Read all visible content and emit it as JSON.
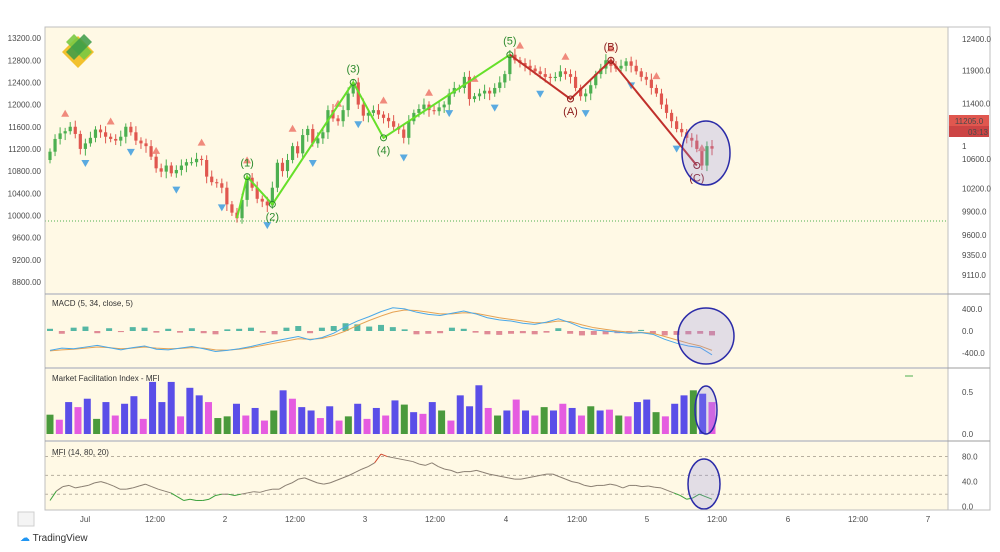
{
  "brand": "TradingView",
  "colors": {
    "background": "#fff9e5",
    "bull": "#4caf50",
    "bear": "#e0574f",
    "wave_up": "#66e02a",
    "wave_down": "#c0302b",
    "fractal_up": "#f08a7c",
    "fractal_down": "#5aaae0",
    "macd": "#4aa8e8",
    "signal": "#e6a253",
    "mfi_line": "#8a7f72",
    "highlight": "#2b2ba8"
  },
  "chart_data": [
    {
      "type": "candlestick",
      "left_axis": {
        "ticks": [
          "13200.00",
          "12800.00",
          "12400.00",
          "12000.00",
          "11600.00",
          "11200.00",
          "10800.00",
          "10400.00",
          "10000.00",
          "9600.00",
          "9200.00",
          "8800.00"
        ],
        "ylim": [
          8600,
          13400
        ]
      },
      "right_axis": {
        "ticks": [
          "12400.0",
          "11900.0",
          "11400.0",
          "10600.0",
          "10200.0",
          "9900.0",
          "9600.0",
          "9350.0",
          "9110.0"
        ],
        "scale": "log"
      },
      "last_price": "11205.0",
      "countdown": "03:13",
      "right_extra_tick": "1",
      "x_ticks": [
        "Jul",
        "12:00",
        "2",
        "12:00",
        "3",
        "12:00",
        "4",
        "12:00",
        "5",
        "12:00",
        "6",
        "12:00",
        "7"
      ],
      "dotted_level": 9900,
      "closes": [
        11150,
        11380,
        11480,
        11520,
        11600,
        11470,
        11200,
        11300,
        11400,
        11550,
        11500,
        11420,
        11380,
        11350,
        11420,
        11600,
        11500,
        11350,
        11300,
        11250,
        11060,
        10850,
        10790,
        10900,
        10760,
        10820,
        10900,
        10960,
        10960,
        11020,
        11000,
        10700,
        10600,
        10580,
        10500,
        10200,
        10050,
        9950,
        10280,
        10680,
        10500,
        10300,
        10250,
        10180,
        10500,
        10950,
        10800,
        11000,
        11250,
        11120,
        11450,
        11560,
        11300,
        11390,
        11500,
        11900,
        11750,
        11700,
        11900,
        12200,
        12400,
        12000,
        11800,
        11850,
        11900,
        11820,
        11760,
        11700,
        11600,
        11550,
        11400,
        11700,
        11850,
        11920,
        12000,
        11900,
        11880,
        11950,
        12000,
        12200,
        12300,
        12300,
        12500,
        12100,
        12150,
        12200,
        12250,
        12200,
        12300,
        12400,
        12550,
        12900,
        12800,
        12750,
        12700,
        12650,
        12600,
        12550,
        12500,
        12480,
        12500,
        12600,
        12550,
        12500,
        12300,
        12150,
        12200,
        12350,
        12550,
        12650,
        12800,
        12700,
        12650,
        12700,
        12780,
        12700,
        12600,
        12500,
        12450,
        12300,
        12200,
        12000,
        11850,
        11700,
        11560,
        11500,
        11400,
        11350,
        11200,
        10900,
        11250,
        11205
      ],
      "waves": [
        {
          "label": "(1)",
          "dir": "up",
          "price": 10700
        },
        {
          "label": "(2)",
          "dir": "up",
          "price": 10200
        },
        {
          "label": "(3)",
          "dir": "up",
          "price": 12400
        },
        {
          "label": "(4)",
          "dir": "up",
          "price": 11400
        },
        {
          "label": "(5)",
          "dir": "up",
          "price": 12900
        },
        {
          "label": "(A)",
          "dir": "down",
          "price": 12100
        },
        {
          "label": "(B)",
          "dir": "down",
          "price": 12800
        },
        {
          "label": "(C)",
          "dir": "down",
          "price": 10900
        }
      ]
    },
    {
      "type": "line",
      "title": "MACD (5, 34, close, 5)",
      "axis_ticks": [
        "400.0",
        "0.0",
        "-400.0"
      ],
      "ylim": [
        -650,
        650
      ],
      "macd": [
        -350,
        -310,
        -320,
        -290,
        -260,
        -300,
        -340,
        -300,
        -270,
        -330,
        -340,
        -310,
        -280,
        -320,
        -370,
        -350,
        -320,
        -280,
        -230,
        -180,
        -140,
        -100,
        -160,
        -120,
        -40,
        80,
        180,
        260,
        350,
        420,
        400,
        340,
        300,
        280,
        320,
        360,
        310,
        240,
        200,
        180,
        140,
        120,
        160,
        220,
        150,
        60,
        20,
        0,
        -20,
        -40,
        -30,
        -60,
        -150,
        -220,
        -270,
        -300,
        -430
      ],
      "signal": [
        -360,
        -340,
        -330,
        -310,
        -290,
        -300,
        -320,
        -310,
        -290,
        -310,
        -320,
        -315,
        -300,
        -310,
        -340,
        -345,
        -330,
        -300,
        -260,
        -220,
        -180,
        -140,
        -150,
        -135,
        -80,
        0,
        100,
        190,
        270,
        340,
        380,
        370,
        340,
        310,
        310,
        330,
        320,
        280,
        240,
        210,
        180,
        150,
        150,
        180,
        170,
        110,
        60,
        30,
        0,
        -20,
        -25,
        -40,
        -100,
        -160,
        -220,
        -270,
        -350
      ],
      "histogram": [
        20,
        -25,
        30,
        40,
        -20,
        25,
        -10,
        35,
        30,
        -15,
        20,
        -15,
        25,
        -20,
        -30,
        15,
        20,
        30,
        -15,
        -30,
        30,
        45,
        -20,
        30,
        45,
        70,
        60,
        40,
        55,
        35,
        15,
        -30,
        -25,
        -20,
        30,
        20,
        -15,
        -30,
        -35,
        -25,
        -20,
        -30,
        -15,
        25,
        -25,
        -40,
        -35,
        -30,
        -20,
        -15,
        10,
        -25,
        -40,
        -35,
        -30,
        -25,
        -40
      ]
    },
    {
      "type": "bar",
      "title": "Market Facilitation Index - MFI",
      "axis_ticks": [
        "0.5",
        "0.0"
      ],
      "ylim": [
        0,
        0.75
      ],
      "values": [
        0.23,
        0.17,
        0.38,
        0.32,
        0.42,
        0.18,
        0.38,
        0.22,
        0.36,
        0.45,
        0.18,
        0.62,
        0.38,
        0.62,
        0.21,
        0.55,
        0.46,
        0.38,
        0.19,
        0.21,
        0.36,
        0.22,
        0.31,
        0.16,
        0.28,
        0.52,
        0.42,
        0.32,
        0.28,
        0.19,
        0.33,
        0.16,
        0.21,
        0.36,
        0.18,
        0.31,
        0.22,
        0.4,
        0.35,
        0.26,
        0.24,
        0.38,
        0.28,
        0.16,
        0.46,
        0.33,
        0.58,
        0.31,
        0.22,
        0.28,
        0.41,
        0.28,
        0.22,
        0.32,
        0.28,
        0.36,
        0.31,
        0.22,
        0.33,
        0.28,
        0.29,
        0.22,
        0.21,
        0.38,
        0.41,
        0.26,
        0.21,
        0.36,
        0.46,
        0.52,
        0.48,
        0.38
      ],
      "colors": [
        "g",
        "p",
        "b",
        "p",
        "b",
        "g",
        "b",
        "p",
        "b",
        "b",
        "p",
        "b",
        "b",
        "b",
        "p",
        "b",
        "b",
        "p",
        "g",
        "g",
        "b",
        "p",
        "b",
        "p",
        "g",
        "b",
        "p",
        "b",
        "b",
        "p",
        "b",
        "p",
        "g",
        "b",
        "p",
        "b",
        "p",
        "b",
        "g",
        "b",
        "p",
        "b",
        "g",
        "p",
        "b",
        "b",
        "b",
        "p",
        "g",
        "b",
        "p",
        "b",
        "p",
        "g",
        "b",
        "p",
        "b",
        "p",
        "g",
        "b",
        "p",
        "g",
        "p",
        "b",
        "b",
        "g",
        "p",
        "b",
        "b",
        "g",
        "b",
        "p"
      ]
    },
    {
      "type": "line",
      "title": "MFI (14, 80, 20)",
      "axis_ticks": [
        "80.0",
        "40.0",
        "0.0"
      ],
      "ylim": [
        -2,
        100
      ],
      "levels": [
        80,
        50,
        20
      ],
      "values": [
        10,
        25,
        32,
        34,
        30,
        32,
        34,
        38,
        40,
        37,
        33,
        28,
        28,
        30,
        33,
        36,
        32,
        28,
        25,
        22,
        16,
        10,
        12,
        10,
        10,
        12,
        18,
        20,
        20,
        18,
        20,
        22,
        24,
        23,
        26,
        28,
        28,
        34,
        38,
        44,
        46,
        42,
        38,
        36,
        38,
        42,
        46,
        50,
        55,
        60,
        64,
        70,
        84,
        80,
        78,
        76,
        74,
        72,
        68,
        66,
        70,
        64,
        60,
        58,
        54,
        56,
        56,
        58,
        55,
        52,
        50,
        48,
        46,
        44,
        44,
        46,
        48,
        50,
        52,
        52,
        48,
        44,
        40,
        38,
        34,
        32,
        34,
        34,
        36,
        34,
        30,
        34,
        34,
        32,
        33,
        31,
        30,
        26,
        22,
        18,
        12,
        14,
        20,
        16,
        12
      ]
    }
  ]
}
